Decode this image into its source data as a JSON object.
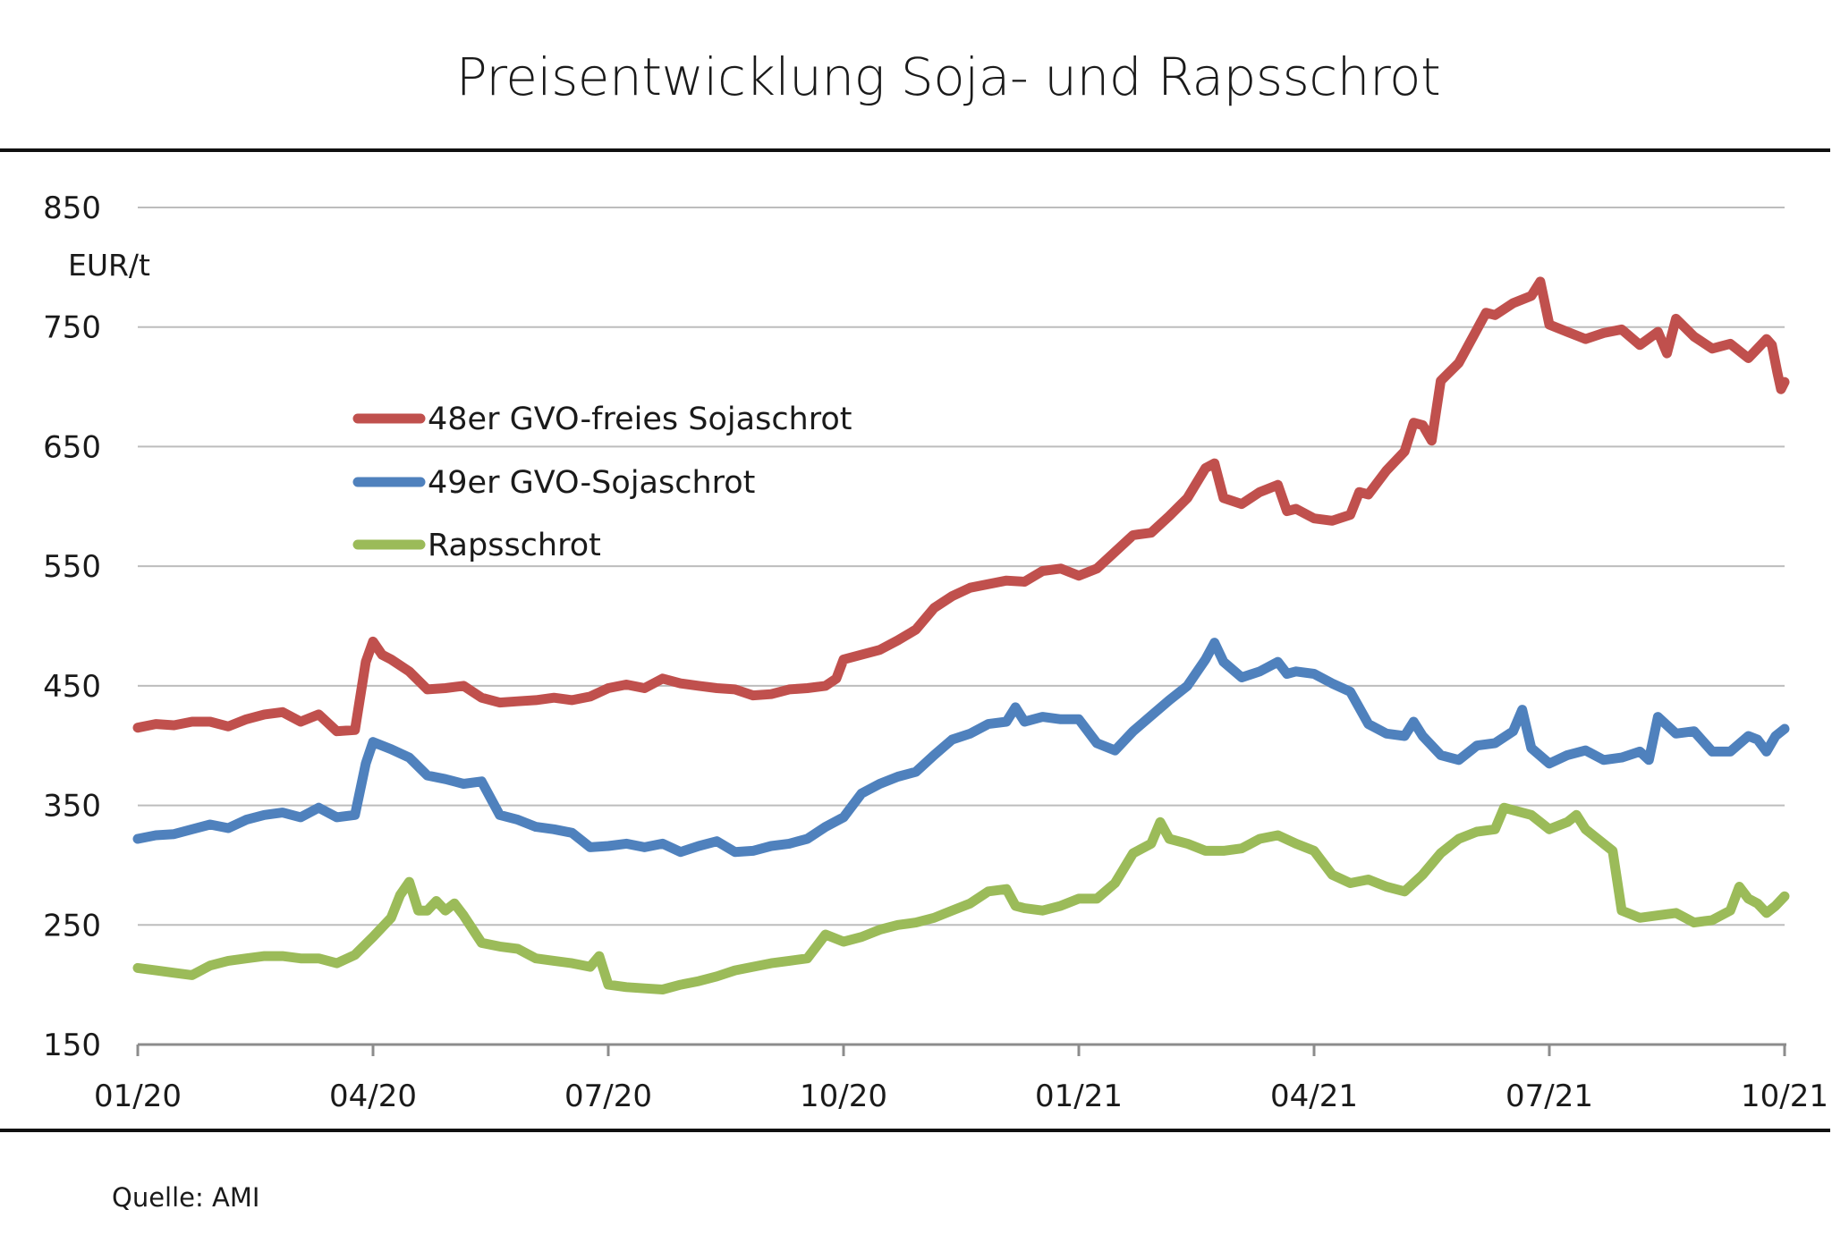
{
  "chart_data": {
    "type": "line",
    "title": "Preisentwicklung Soja- und Rapsschrot",
    "ylabel": "EUR/t",
    "xlabel": "",
    "source": "Quelle: AMI",
    "ylim": [
      150,
      850
    ],
    "yticks": [
      150,
      250,
      350,
      450,
      550,
      650,
      750,
      850
    ],
    "xlim_weeks": [
      0,
      91
    ],
    "xticks": [
      {
        "label": "01/20",
        "week": 0
      },
      {
        "label": "04/20",
        "week": 13
      },
      {
        "label": "07/20",
        "week": 26
      },
      {
        "label": "10/20",
        "week": 39
      },
      {
        "label": "01/21",
        "week": 52
      },
      {
        "label": "04/21",
        "week": 65
      },
      {
        "label": "07/21",
        "week": 78
      },
      {
        "label": "10/21",
        "week": 91
      }
    ],
    "grid": true,
    "legend_position": "upper-left",
    "x_unit": "weeks since 01/2020",
    "series": [
      {
        "name": "48er GVO-freies Sojaschrot",
        "color": "#C0504D",
        "values": [
          [
            0,
            415
          ],
          [
            1,
            418
          ],
          [
            2,
            417
          ],
          [
            3,
            420
          ],
          [
            4,
            420
          ],
          [
            5,
            416
          ],
          [
            6,
            422
          ],
          [
            7,
            426
          ],
          [
            8,
            428
          ],
          [
            9,
            420
          ],
          [
            10,
            426
          ],
          [
            11,
            412
          ],
          [
            12,
            413
          ],
          [
            12.6,
            470
          ],
          [
            13,
            487
          ],
          [
            13.5,
            476
          ],
          [
            14,
            472
          ],
          [
            15,
            462
          ],
          [
            16,
            447
          ],
          [
            17,
            448
          ],
          [
            18,
            450
          ],
          [
            19,
            440
          ],
          [
            20,
            436
          ],
          [
            21,
            437
          ],
          [
            22,
            438
          ],
          [
            23,
            440
          ],
          [
            24,
            438
          ],
          [
            25,
            441
          ],
          [
            26,
            448
          ],
          [
            27,
            451
          ],
          [
            28,
            448
          ],
          [
            29,
            456
          ],
          [
            30,
            452
          ],
          [
            31,
            450
          ],
          [
            32,
            448
          ],
          [
            33,
            447
          ],
          [
            34,
            442
          ],
          [
            35,
            443
          ],
          [
            36,
            447
          ],
          [
            37,
            448
          ],
          [
            38,
            450
          ],
          [
            38.6,
            456
          ],
          [
            39,
            472
          ],
          [
            40,
            476
          ],
          [
            41,
            480
          ],
          [
            42,
            488
          ],
          [
            43,
            497
          ],
          [
            44,
            515
          ],
          [
            45,
            525
          ],
          [
            46,
            532
          ],
          [
            47,
            535
          ],
          [
            48,
            538
          ],
          [
            49,
            537
          ],
          [
            50,
            546
          ],
          [
            51,
            548
          ],
          [
            52,
            542
          ],
          [
            53,
            548
          ],
          [
            54,
            562
          ],
          [
            55,
            576
          ],
          [
            56,
            578
          ],
          [
            57,
            592
          ],
          [
            58,
            607
          ],
          [
            59,
            632
          ],
          [
            59.5,
            636
          ],
          [
            60,
            607
          ],
          [
            61,
            602
          ],
          [
            62,
            612
          ],
          [
            63,
            618
          ],
          [
            63.5,
            596
          ],
          [
            64,
            598
          ],
          [
            65,
            590
          ],
          [
            66,
            588
          ],
          [
            67,
            593
          ],
          [
            67.5,
            612
          ],
          [
            68,
            610
          ],
          [
            69,
            630
          ],
          [
            70,
            646
          ],
          [
            70.5,
            670
          ],
          [
            71,
            668
          ],
          [
            71.5,
            655
          ],
          [
            72,
            705
          ],
          [
            73,
            720
          ],
          [
            74,
            748
          ],
          [
            74.5,
            762
          ],
          [
            75,
            760
          ],
          [
            76,
            770
          ],
          [
            77,
            776
          ],
          [
            77.5,
            788
          ],
          [
            78,
            752
          ],
          [
            79,
            746
          ],
          [
            80,
            740
          ],
          [
            81,
            745
          ],
          [
            82,
            748
          ],
          [
            83,
            735
          ],
          [
            84,
            746
          ],
          [
            84.5,
            728
          ],
          [
            85,
            757
          ],
          [
            86,
            742
          ],
          [
            87,
            732
          ],
          [
            88,
            736
          ],
          [
            89,
            724
          ],
          [
            89.5,
            732
          ],
          [
            90,
            740
          ],
          [
            90.3,
            735
          ],
          [
            90.6,
            712
          ],
          [
            90.8,
            698
          ],
          [
            91,
            704
          ]
        ]
      },
      {
        "name": "49er GVO-Sojaschrot",
        "color": "#4F81BD",
        "values": [
          [
            0,
            322
          ],
          [
            1,
            325
          ],
          [
            2,
            326
          ],
          [
            3,
            330
          ],
          [
            4,
            334
          ],
          [
            5,
            331
          ],
          [
            6,
            338
          ],
          [
            7,
            342
          ],
          [
            8,
            344
          ],
          [
            9,
            340
          ],
          [
            10,
            348
          ],
          [
            11,
            340
          ],
          [
            12,
            342
          ],
          [
            12.6,
            385
          ],
          [
            13,
            403
          ],
          [
            14,
            397
          ],
          [
            15,
            390
          ],
          [
            16,
            375
          ],
          [
            17,
            372
          ],
          [
            18,
            368
          ],
          [
            19,
            370
          ],
          [
            20,
            342
          ],
          [
            21,
            338
          ],
          [
            22,
            332
          ],
          [
            23,
            330
          ],
          [
            24,
            327
          ],
          [
            25,
            315
          ],
          [
            26,
            316
          ],
          [
            27,
            318
          ],
          [
            28,
            315
          ],
          [
            29,
            318
          ],
          [
            30,
            311
          ],
          [
            31,
            316
          ],
          [
            32,
            320
          ],
          [
            33,
            311
          ],
          [
            34,
            312
          ],
          [
            35,
            316
          ],
          [
            36,
            318
          ],
          [
            37,
            322
          ],
          [
            38,
            332
          ],
          [
            39,
            340
          ],
          [
            40,
            360
          ],
          [
            41,
            368
          ],
          [
            42,
            374
          ],
          [
            43,
            378
          ],
          [
            44,
            392
          ],
          [
            45,
            405
          ],
          [
            46,
            410
          ],
          [
            47,
            418
          ],
          [
            48,
            420
          ],
          [
            48.5,
            432
          ],
          [
            49,
            420
          ],
          [
            50,
            424
          ],
          [
            51,
            422
          ],
          [
            52,
            422
          ],
          [
            53,
            402
          ],
          [
            54,
            396
          ],
          [
            55,
            412
          ],
          [
            56,
            425
          ],
          [
            57,
            438
          ],
          [
            58,
            450
          ],
          [
            59,
            472
          ],
          [
            59.5,
            486
          ],
          [
            60,
            470
          ],
          [
            61,
            457
          ],
          [
            62,
            462
          ],
          [
            63,
            470
          ],
          [
            63.5,
            460
          ],
          [
            64,
            462
          ],
          [
            65,
            460
          ],
          [
            66,
            452
          ],
          [
            67,
            445
          ],
          [
            68,
            418
          ],
          [
            69,
            410
          ],
          [
            70,
            408
          ],
          [
            70.5,
            420
          ],
          [
            71,
            408
          ],
          [
            72,
            392
          ],
          [
            73,
            388
          ],
          [
            74,
            400
          ],
          [
            75,
            402
          ],
          [
            76,
            412
          ],
          [
            76.5,
            430
          ],
          [
            77,
            398
          ],
          [
            78,
            385
          ],
          [
            79,
            392
          ],
          [
            80,
            396
          ],
          [
            81,
            388
          ],
          [
            82,
            390
          ],
          [
            83,
            395
          ],
          [
            83.5,
            388
          ],
          [
            84,
            424
          ],
          [
            85,
            410
          ],
          [
            86,
            412
          ],
          [
            87,
            395
          ],
          [
            88,
            395
          ],
          [
            89,
            408
          ],
          [
            89.5,
            405
          ],
          [
            90,
            395
          ],
          [
            90.5,
            408
          ],
          [
            91,
            414
          ]
        ]
      },
      {
        "name": "Rapsschrot",
        "color": "#9BBB59",
        "values": [
          [
            0,
            214
          ],
          [
            1,
            212
          ],
          [
            2,
            210
          ],
          [
            3,
            208
          ],
          [
            4,
            216
          ],
          [
            5,
            220
          ],
          [
            6,
            222
          ],
          [
            7,
            224
          ],
          [
            8,
            224
          ],
          [
            9,
            222
          ],
          [
            10,
            222
          ],
          [
            11,
            218
          ],
          [
            12,
            225
          ],
          [
            13,
            240
          ],
          [
            14,
            256
          ],
          [
            14.5,
            275
          ],
          [
            15,
            286
          ],
          [
            15.5,
            262
          ],
          [
            16,
            262
          ],
          [
            16.5,
            270
          ],
          [
            17,
            262
          ],
          [
            17.5,
            268
          ],
          [
            18,
            258
          ],
          [
            19,
            235
          ],
          [
            20,
            232
          ],
          [
            21,
            230
          ],
          [
            22,
            222
          ],
          [
            23,
            220
          ],
          [
            24,
            218
          ],
          [
            25,
            215
          ],
          [
            25.5,
            224
          ],
          [
            26,
            200
          ],
          [
            27,
            198
          ],
          [
            28,
            197
          ],
          [
            29,
            196
          ],
          [
            30,
            200
          ],
          [
            31,
            203
          ],
          [
            32,
            207
          ],
          [
            33,
            212
          ],
          [
            34,
            215
          ],
          [
            35,
            218
          ],
          [
            36,
            220
          ],
          [
            37,
            222
          ],
          [
            38,
            242
          ],
          [
            39,
            236
          ],
          [
            40,
            240
          ],
          [
            41,
            246
          ],
          [
            42,
            250
          ],
          [
            43,
            252
          ],
          [
            44,
            256
          ],
          [
            45,
            262
          ],
          [
            46,
            268
          ],
          [
            47,
            278
          ],
          [
            48,
            280
          ],
          [
            48.5,
            266
          ],
          [
            49,
            264
          ],
          [
            50,
            262
          ],
          [
            51,
            266
          ],
          [
            52,
            272
          ],
          [
            53,
            272
          ],
          [
            54,
            285
          ],
          [
            55,
            310
          ],
          [
            56,
            318
          ],
          [
            56.5,
            336
          ],
          [
            57,
            322
          ],
          [
            58,
            318
          ],
          [
            59,
            312
          ],
          [
            60,
            312
          ],
          [
            61,
            314
          ],
          [
            62,
            322
          ],
          [
            63,
            325
          ],
          [
            64,
            318
          ],
          [
            65,
            312
          ],
          [
            66,
            292
          ],
          [
            67,
            285
          ],
          [
            68,
            288
          ],
          [
            69,
            282
          ],
          [
            70,
            278
          ],
          [
            71,
            292
          ],
          [
            72,
            310
          ],
          [
            73,
            322
          ],
          [
            74,
            328
          ],
          [
            75,
            330
          ],
          [
            75.5,
            348
          ],
          [
            76,
            346
          ],
          [
            77,
            342
          ],
          [
            78,
            330
          ],
          [
            79,
            336
          ],
          [
            79.5,
            342
          ],
          [
            80,
            330
          ],
          [
            81,
            318
          ],
          [
            81.5,
            312
          ],
          [
            82,
            262
          ],
          [
            83,
            256
          ],
          [
            84,
            258
          ],
          [
            85,
            260
          ],
          [
            86,
            252
          ],
          [
            87,
            254
          ],
          [
            88,
            262
          ],
          [
            88.5,
            282
          ],
          [
            89,
            272
          ],
          [
            89.5,
            268
          ],
          [
            90,
            260
          ],
          [
            90.5,
            266
          ],
          [
            91,
            274
          ]
        ]
      }
    ]
  }
}
